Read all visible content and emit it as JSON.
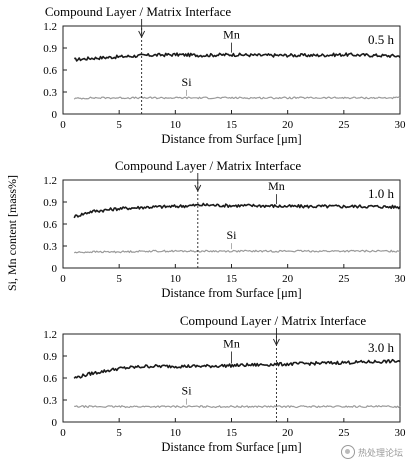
{
  "figure": {
    "ylabel": "Si, Mn content [mass%]",
    "xlabel": "Distance from Surface [μm]",
    "interface_label": "Compound Layer / Matrix Interface",
    "watermark": "热处理论坛",
    "line_colors": {
      "Mn": "#1a1a1a",
      "Si": "#9a9a9a"
    }
  },
  "chart_data": [
    {
      "type": "line",
      "panel_label": "0.5 h",
      "interface_x": 7,
      "xlim": [
        0,
        30
      ],
      "ylim": [
        0,
        1.2
      ],
      "xticks": [
        0,
        5,
        10,
        15,
        20,
        25,
        30
      ],
      "yticks": [
        0,
        0.3,
        0.6,
        0.9,
        1.2
      ],
      "xlabel": "Distance from Surface [μm]",
      "ylabel": "Si, Mn content [mass%]",
      "x": [
        1,
        2.5,
        5,
        7.5,
        10,
        12.5,
        15,
        17.5,
        20,
        22.5,
        25,
        27.5,
        30
      ],
      "series": [
        {
          "name": "Mn",
          "values": [
            0.74,
            0.76,
            0.78,
            0.8,
            0.81,
            0.8,
            0.81,
            0.8,
            0.8,
            0.8,
            0.81,
            0.8,
            0.79
          ]
        },
        {
          "name": "Si",
          "values": [
            0.21,
            0.22,
            0.22,
            0.22,
            0.22,
            0.22,
            0.22,
            0.22,
            0.22,
            0.22,
            0.22,
            0.22,
            0.22
          ]
        }
      ]
    },
    {
      "type": "line",
      "panel_label": "1.0 h",
      "interface_x": 12,
      "xlim": [
        0,
        30
      ],
      "ylim": [
        0,
        1.2
      ],
      "xticks": [
        0,
        5,
        10,
        15,
        20,
        25,
        30
      ],
      "yticks": [
        0,
        0.3,
        0.6,
        0.9,
        1.2
      ],
      "xlabel": "Distance from Surface [μm]",
      "ylabel": "Si, Mn content [mass%]",
      "x": [
        1,
        2.5,
        5,
        7.5,
        10,
        12.5,
        15,
        17.5,
        20,
        22.5,
        25,
        27.5,
        30
      ],
      "series": [
        {
          "name": "Mn",
          "values": [
            0.7,
            0.77,
            0.81,
            0.83,
            0.84,
            0.86,
            0.85,
            0.85,
            0.84,
            0.84,
            0.84,
            0.84,
            0.83
          ]
        },
        {
          "name": "Si",
          "values": [
            0.21,
            0.22,
            0.22,
            0.23,
            0.23,
            0.23,
            0.23,
            0.23,
            0.23,
            0.23,
            0.23,
            0.23,
            0.23
          ]
        }
      ]
    },
    {
      "type": "line",
      "panel_label": "3.0 h",
      "interface_x": 19,
      "xlim": [
        0,
        30
      ],
      "ylim": [
        0,
        1.2
      ],
      "xticks": [
        0,
        5,
        10,
        15,
        20,
        25,
        30
      ],
      "yticks": [
        0,
        0.3,
        0.6,
        0.9,
        1.2
      ],
      "xlabel": "Distance from Surface [μm]",
      "ylabel": "Si, Mn content [mass%]",
      "x": [
        1,
        2.5,
        5,
        7.5,
        10,
        12.5,
        15,
        17.5,
        20,
        22.5,
        25,
        27.5,
        30
      ],
      "series": [
        {
          "name": "Mn",
          "values": [
            0.6,
            0.66,
            0.73,
            0.76,
            0.76,
            0.76,
            0.77,
            0.78,
            0.79,
            0.8,
            0.81,
            0.82,
            0.83
          ]
        },
        {
          "name": "Si",
          "values": [
            0.21,
            0.21,
            0.21,
            0.21,
            0.21,
            0.21,
            0.21,
            0.21,
            0.21,
            0.21,
            0.21,
            0.21,
            0.21
          ]
        }
      ]
    }
  ]
}
